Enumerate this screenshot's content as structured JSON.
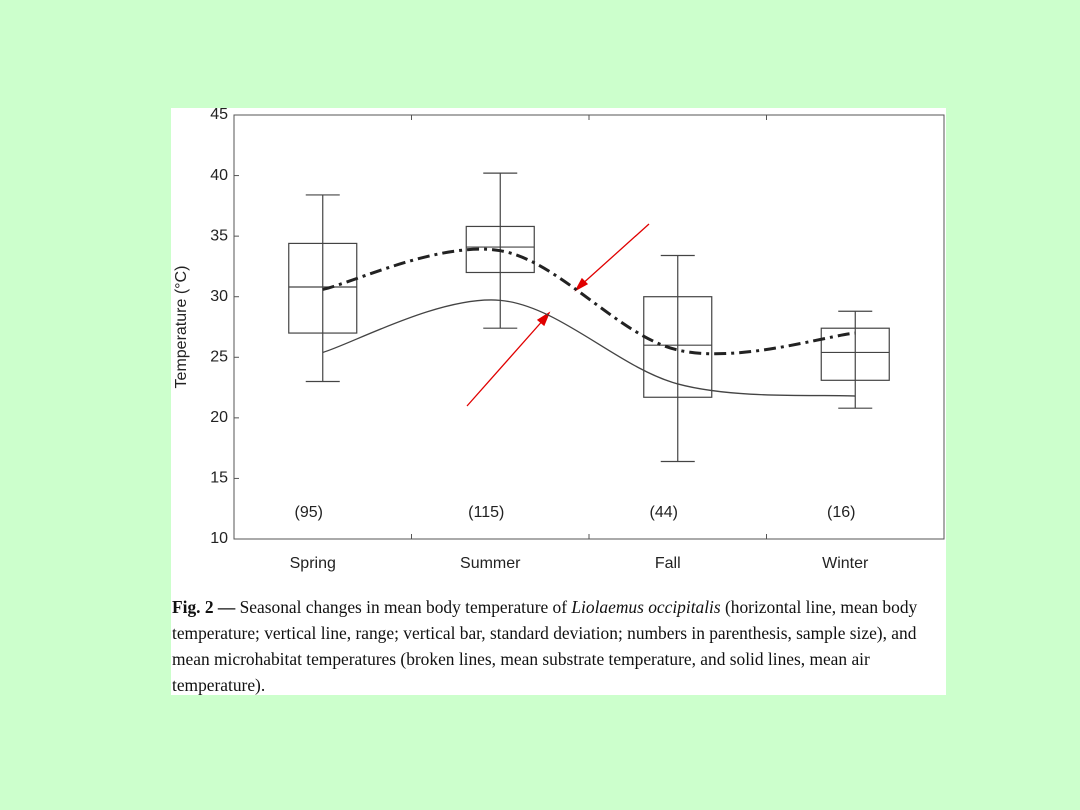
{
  "chart_data": {
    "type": "box",
    "y_label": "Temperature (°C)",
    "categories": [
      "Spring",
      "Summer",
      "Fall",
      "Winter"
    ],
    "boxes": [
      {
        "min": 23,
        "q1": 27,
        "mean": 30.8,
        "q3": 34.4,
        "max": 38.4
      },
      {
        "min": 27.4,
        "q1": 32,
        "mean": 34.1,
        "q3": 35.8,
        "max": 40.2
      },
      {
        "min": 16.4,
        "q1": 21.7,
        "mean": 26,
        "q3": 30,
        "max": 33.4
      },
      {
        "min": 20.8,
        "q1": 23.1,
        "mean": 25.4,
        "q3": 27.4,
        "max": 28.8
      }
    ],
    "sample_size_labels": [
      "(95)",
      "(115)",
      "(44)",
      "(16)"
    ],
    "series": [
      {
        "color": "#222222",
        "style": "dashdot",
        "values": [
          30.6,
          33.8,
          25.6,
          27
        ]
      },
      {
        "color": "#444444",
        "style": "solid",
        "values": [
          25.4,
          29.7,
          22.8,
          21.8
        ]
      }
    ],
    "ylim": [
      10,
      45
    ],
    "yticks": [
      10,
      15,
      20,
      25,
      30,
      35,
      40,
      45
    ]
  },
  "caption": {
    "label": "Fig. 2 —",
    "text_before": " Seasonal changes in mean body temperature of ",
    "species": "Liolaemus occipitalis",
    "text_after": " (horizontal line, mean body temperature; vertical line, range; vertical bar, standard deviation; numbers in parenthesis, sample size), and mean microhabitat temperatures (broken lines, mean substrate temperature, and solid lines, mean air temperature)."
  }
}
